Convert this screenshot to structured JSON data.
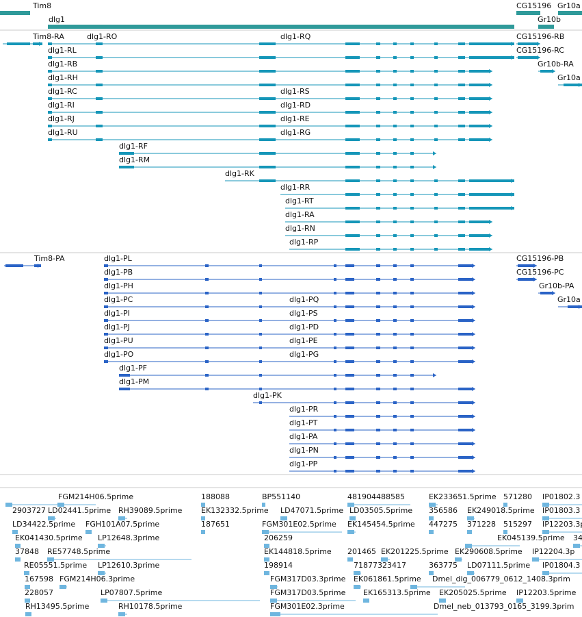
{
  "colors": {
    "gene": "#2f9a9a",
    "transcript": "#1596b8",
    "protein": "#2a63c6",
    "est": "#6fb6df",
    "divider": "#c9c9c9",
    "label": "#111111"
  },
  "gene_track": {
    "features": [
      {
        "label": "Tim8",
        "row": 0
      },
      {
        "label": "dlg1",
        "row": 1
      },
      {
        "label": "CG15196",
        "row": 0
      },
      {
        "label": "Gr10a",
        "row": 0
      },
      {
        "label": "Gr10b",
        "row": 1
      }
    ]
  },
  "transcript_track": {
    "features": [
      {
        "label": "Tim8-RA"
      },
      {
        "label": "dlg1-RO"
      },
      {
        "label": "dlg1-RQ"
      },
      {
        "label": "CG15196-RB"
      },
      {
        "label": "CG15196-RC"
      },
      {
        "label": "dlg1-RL"
      },
      {
        "label": "dlg1-RB"
      },
      {
        "label": "dlg1-RH"
      },
      {
        "label": "Gr10b-RA"
      },
      {
        "label": "Gr10a"
      },
      {
        "label": "dlg1-RC"
      },
      {
        "label": "dlg1-RS"
      },
      {
        "label": "dlg1-RI"
      },
      {
        "label": "dlg1-RD"
      },
      {
        "label": "dlg1-RJ"
      },
      {
        "label": "dlg1-RE"
      },
      {
        "label": "dlg1-RU"
      },
      {
        "label": "dlg1-RG"
      },
      {
        "label": "dlg1-RF"
      },
      {
        "label": "dlg1-RM"
      },
      {
        "label": "dlg1-RK"
      },
      {
        "label": "dlg1-RR"
      },
      {
        "label": "dlg1-RT"
      },
      {
        "label": "dlg1-RA"
      },
      {
        "label": "dlg1-RN"
      },
      {
        "label": "dlg1-RP"
      }
    ]
  },
  "protein_track": {
    "features": [
      {
        "label": "Tim8-PA"
      },
      {
        "label": "dlg1-PL"
      },
      {
        "label": "dlg1-PB"
      },
      {
        "label": "dlg1-PH"
      },
      {
        "label": "dlg1-PC"
      },
      {
        "label": "dlg1-PI"
      },
      {
        "label": "dlg1-PJ"
      },
      {
        "label": "dlg1-PU"
      },
      {
        "label": "dlg1-PO"
      },
      {
        "label": "dlg1-PQ"
      },
      {
        "label": "dlg1-PS"
      },
      {
        "label": "dlg1-PD"
      },
      {
        "label": "dlg1-PE"
      },
      {
        "label": "dlg1-PG"
      },
      {
        "label": "dlg1-PF"
      },
      {
        "label": "dlg1-PM"
      },
      {
        "label": "dlg1-PK"
      },
      {
        "label": "dlg1-PR"
      },
      {
        "label": "dlg1-PT"
      },
      {
        "label": "dlg1-PA"
      },
      {
        "label": "dlg1-PN"
      },
      {
        "label": "dlg1-PP"
      },
      {
        "label": "CG15196-PB"
      },
      {
        "label": "CG15196-PC"
      },
      {
        "label": "Gr10b-PA"
      },
      {
        "label": "Gr10a"
      }
    ]
  },
  "est_track": {
    "features": [
      {
        "label": "FGM214H06.5prime"
      },
      {
        "label": "188088"
      },
      {
        "label": "BP551140"
      },
      {
        "label": "481904488585"
      },
      {
        "label": "EK233651.5prime"
      },
      {
        "label": "571280"
      },
      {
        "label": "IP01802.3"
      },
      {
        "label": "2903727"
      },
      {
        "label": "LD02441.5prime"
      },
      {
        "label": "RH39089.5prime"
      },
      {
        "label": "EK132332.5prime"
      },
      {
        "label": "LD47071.5prime"
      },
      {
        "label": "LD03505.5prime"
      },
      {
        "label": "356586"
      },
      {
        "label": "EK249018.5prime"
      },
      {
        "label": "IP01803.3"
      },
      {
        "label": "LD34422.5prime"
      },
      {
        "label": "FGH101A07.5prime"
      },
      {
        "label": "187651"
      },
      {
        "label": "FGM301E02.5prime"
      },
      {
        "label": "EK145454.5prime"
      },
      {
        "label": "447275"
      },
      {
        "label": "371228"
      },
      {
        "label": "515297"
      },
      {
        "label": "IP12203.3p"
      },
      {
        "label": "EK041430.5prime"
      },
      {
        "label": "LP12648.3prime"
      },
      {
        "label": "206259"
      },
      {
        "label": "EK045139.5prime"
      },
      {
        "label": "34"
      },
      {
        "label": "37848"
      },
      {
        "label": "RE57748.5prime"
      },
      {
        "label": "EK144818.5prime"
      },
      {
        "label": "201465"
      },
      {
        "label": "EK201225.5prime"
      },
      {
        "label": "EK290608.5prime"
      },
      {
        "label": "IP12204.3p"
      },
      {
        "label": "RE05551.5prime"
      },
      {
        "label": "LP12610.3prime"
      },
      {
        "label": "198914"
      },
      {
        "label": "71877323417"
      },
      {
        "label": "363775"
      },
      {
        "label": "LD07111.5prime"
      },
      {
        "label": "IP01804.3"
      },
      {
        "label": "167598"
      },
      {
        "label": "FGM214H06.3prime"
      },
      {
        "label": "FGM317D03.3prime"
      },
      {
        "label": "EK061861.5prime"
      },
      {
        "label": "Dmel_dig_006779_0612_1408.3prim"
      },
      {
        "label": "228057"
      },
      {
        "label": "LP07807.5prime"
      },
      {
        "label": "FGM317D03.5prime"
      },
      {
        "label": "EK165313.5prime"
      },
      {
        "label": "EK205025.5prime"
      },
      {
        "label": "IP12203.5prime"
      },
      {
        "label": "RH13495.5prime"
      },
      {
        "label": "RH10178.5prime"
      },
      {
        "label": "FGM301E02.3prime"
      },
      {
        "label": "Dmel_neb_013793_0165_3199.3prim"
      }
    ]
  }
}
